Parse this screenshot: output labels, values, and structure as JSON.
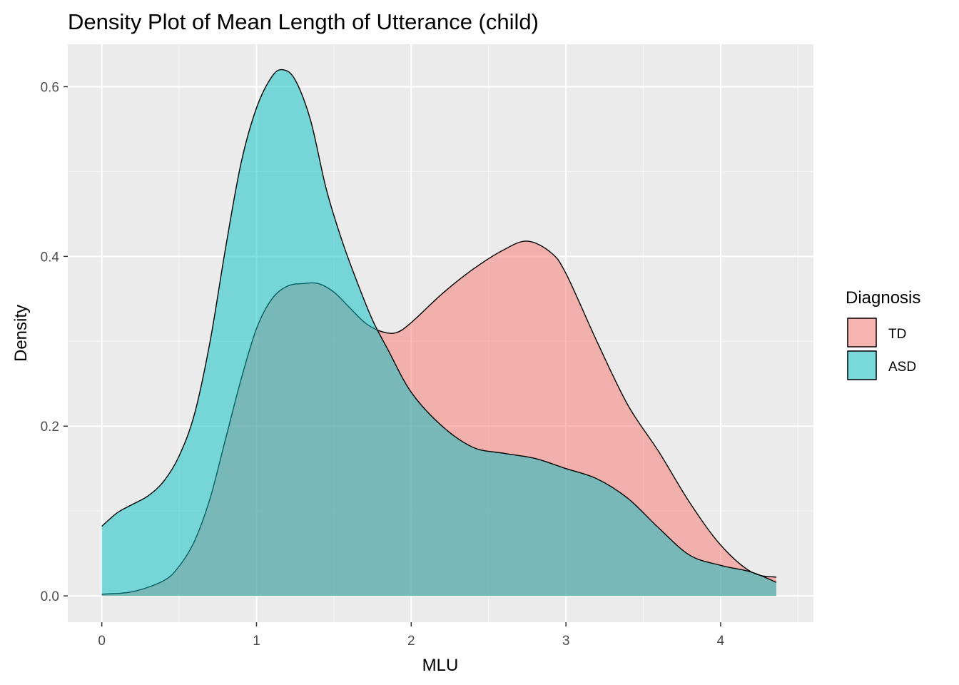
{
  "chart_data": {
    "type": "area",
    "title": "Density Plot of Mean Length of Utterance (child)",
    "xlabel": "MLU",
    "ylabel": "Density",
    "xlim": [
      -0.22,
      4.6
    ],
    "ylim": [
      -0.031,
      0.65
    ],
    "x_ticks": [
      0,
      1,
      2,
      3,
      4
    ],
    "x_tick_labels": [
      "0",
      "1",
      "2",
      "3",
      "4"
    ],
    "y_ticks": [
      0.0,
      0.2,
      0.4,
      0.6
    ],
    "y_tick_labels": [
      "0.0",
      "0.2",
      "0.4",
      "0.6"
    ],
    "grid": true,
    "legend": {
      "title": "Diagnosis",
      "placement": "right"
    },
    "series": [
      {
        "name": "TD",
        "color": "#F8766D",
        "x": [
          0.0,
          0.2,
          0.4,
          0.5,
          0.6,
          0.7,
          0.8,
          0.9,
          1.0,
          1.1,
          1.2,
          1.3,
          1.4,
          1.5,
          1.6,
          1.7,
          1.8,
          1.9,
          2.0,
          2.2,
          2.4,
          2.6,
          2.75,
          2.9,
          3.0,
          3.2,
          3.4,
          3.6,
          3.8,
          4.0,
          4.2,
          4.36
        ],
        "values": [
          0.002,
          0.005,
          0.018,
          0.035,
          0.065,
          0.115,
          0.185,
          0.255,
          0.315,
          0.35,
          0.365,
          0.368,
          0.368,
          0.358,
          0.34,
          0.322,
          0.312,
          0.31,
          0.322,
          0.356,
          0.385,
          0.408,
          0.418,
          0.405,
          0.38,
          0.3,
          0.225,
          0.17,
          0.11,
          0.06,
          0.028,
          0.022
        ]
      },
      {
        "name": "ASD",
        "color": "#00BFC4",
        "x": [
          0.0,
          0.1,
          0.2,
          0.3,
          0.4,
          0.5,
          0.6,
          0.7,
          0.8,
          0.9,
          1.0,
          1.1,
          1.17,
          1.25,
          1.35,
          1.45,
          1.55,
          1.65,
          1.75,
          1.85,
          2.0,
          2.2,
          2.4,
          2.6,
          2.8,
          3.0,
          3.2,
          3.4,
          3.6,
          3.8,
          4.0,
          4.2,
          4.36
        ],
        "values": [
          0.082,
          0.098,
          0.108,
          0.118,
          0.135,
          0.165,
          0.215,
          0.3,
          0.41,
          0.51,
          0.575,
          0.612,
          0.62,
          0.608,
          0.56,
          0.48,
          0.42,
          0.37,
          0.325,
          0.29,
          0.24,
          0.2,
          0.175,
          0.168,
          0.162,
          0.15,
          0.138,
          0.115,
          0.08,
          0.048,
          0.036,
          0.028,
          0.016
        ]
      }
    ]
  }
}
